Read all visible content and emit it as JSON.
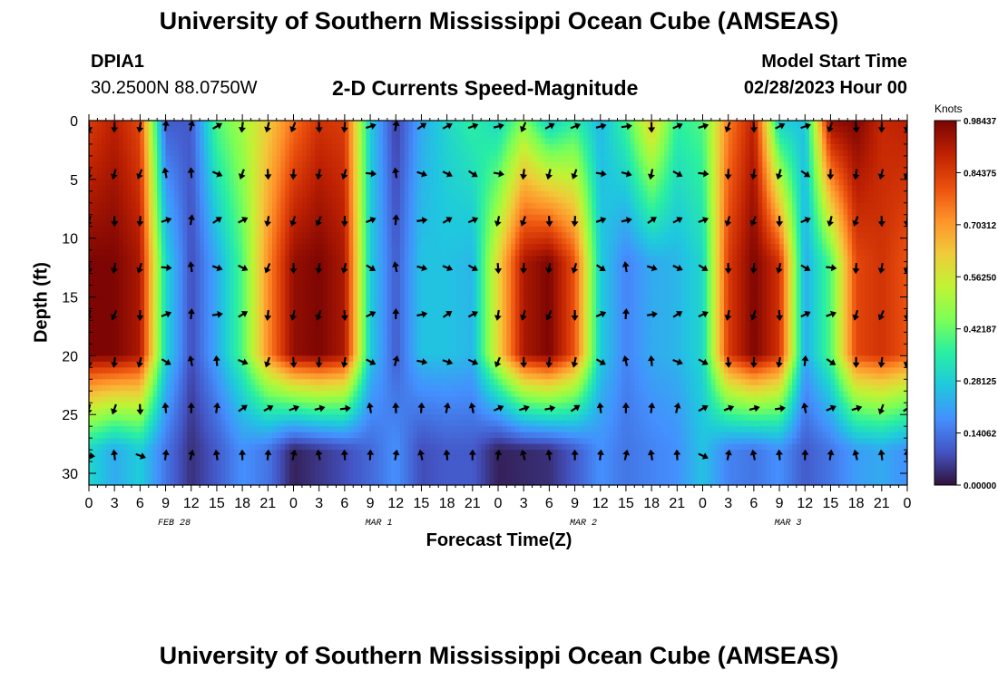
{
  "header": {
    "title": "University of Southern Mississippi Ocean Cube (AMSEAS)",
    "station_id": "DPIA1",
    "station_coords": "30.2500N  88.0750W",
    "subtitle": "2-D Currents Speed-Magnitude",
    "model_start_label": "Model Start Time",
    "model_start_value": "02/28/2023 Hour 00"
  },
  "footer": {
    "title": "University of Southern Mississippi Ocean Cube (AMSEAS)"
  },
  "colors": {
    "background": "#ffffff",
    "axis": "#000000",
    "arrow": "#000000"
  },
  "chart_data": {
    "type": "heatmap",
    "xlabel": "Forecast Time(Z)",
    "ylabel": "Depth (ft)",
    "x_tick_labels": [
      "0",
      "3",
      "6",
      "9",
      "12",
      "15",
      "18",
      "21",
      "0",
      "3",
      "6",
      "9",
      "12",
      "15",
      "18",
      "21",
      "0",
      "3",
      "6",
      "9",
      "12",
      "15",
      "18",
      "21",
      "0",
      "3",
      "6",
      "9",
      "12",
      "15",
      "18",
      "21",
      "0"
    ],
    "x_range_hours": [
      0,
      96
    ],
    "y_ticks": [
      0,
      5,
      10,
      15,
      20,
      25,
      30
    ],
    "y_range": [
      0,
      31
    ],
    "y_reversed": true,
    "date_labels": [
      {
        "label": "FEB 28",
        "hour": 10
      },
      {
        "label": "MAR 1",
        "hour": 34
      },
      {
        "label": "MAR 2",
        "hour": 58
      },
      {
        "label": "MAR 3",
        "hour": 82
      }
    ],
    "colorbar": {
      "unit": "Knots",
      "tick_labels": [
        "0.98437",
        "0.84375",
        "0.70312",
        "0.56250",
        "0.42187",
        "0.28125",
        "0.14062",
        "0.00000"
      ],
      "min": 0,
      "max": 0.98437,
      "colormap": [
        "#30123b",
        "#4454c4",
        "#4490fe",
        "#1fc8de",
        "#29efa2",
        "#7dff56",
        "#c1f334",
        "#f1ca3a",
        "#fe922a",
        "#ea4f0d",
        "#be2102",
        "#7a0403"
      ]
    },
    "speed_profile": {
      "description": "Approximate speed magnitude (knots) at each 3-hour step, surface (0-2 ft), mid-column (10-20 ft) and bottom (28-30 ft)",
      "hours": [
        0,
        3,
        6,
        9,
        12,
        15,
        18,
        21,
        24,
        27,
        30,
        33,
        36,
        39,
        42,
        45,
        48,
        51,
        54,
        57,
        60,
        63,
        66,
        69,
        72,
        75,
        78,
        81,
        84,
        87,
        90,
        93,
        96
      ],
      "surface": [
        0.84,
        0.9,
        0.82,
        0.1,
        0.1,
        0.4,
        0.5,
        0.62,
        0.76,
        0.86,
        0.84,
        0.28,
        0.06,
        0.22,
        0.3,
        0.36,
        0.3,
        0.46,
        0.28,
        0.36,
        0.24,
        0.38,
        0.62,
        0.36,
        0.4,
        0.74,
        0.9,
        0.28,
        0.26,
        0.95,
        0.98,
        0.88,
        0.9
      ],
      "mid": [
        0.98,
        0.98,
        0.92,
        0.3,
        0.08,
        0.22,
        0.4,
        0.72,
        0.95,
        0.98,
        0.92,
        0.28,
        0.1,
        0.26,
        0.26,
        0.24,
        0.6,
        0.92,
        0.98,
        0.8,
        0.28,
        0.16,
        0.22,
        0.24,
        0.3,
        0.84,
        0.98,
        0.86,
        0.22,
        0.4,
        0.82,
        0.86,
        0.8
      ],
      "bottom": [
        0.3,
        0.22,
        0.28,
        0.14,
        0.04,
        0.1,
        0.18,
        0.14,
        0.02,
        0.05,
        0.08,
        0.12,
        0.18,
        0.08,
        0.1,
        0.1,
        0.02,
        0.03,
        0.04,
        0.1,
        0.18,
        0.14,
        0.16,
        0.18,
        0.26,
        0.16,
        0.14,
        0.18,
        0.1,
        0.14,
        0.2,
        0.22,
        0.18
      ]
    }
  }
}
